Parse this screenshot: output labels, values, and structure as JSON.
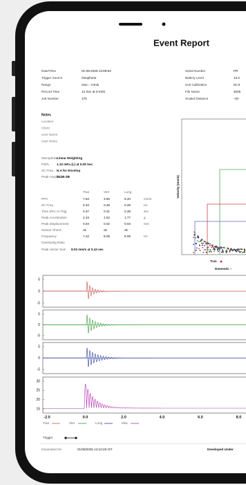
{
  "header": {
    "title": "Event Report"
  },
  "info_left": [
    {
      "label": "Date/Time",
      "value": "01-08-2025 13:09:53"
    },
    {
      "label": "Trigger Source",
      "value": "Geophone"
    },
    {
      "label": "Range",
      "value": "Geo :- mm/s"
    },
    {
      "label": "Record Time",
      "value": "12 Sec at 3 Ks/S"
    },
    {
      "label": "Job Number",
      "value": "175"
    }
  ],
  "info_right": [
    {
      "label": "Serial Number",
      "value": "PR"
    },
    {
      "label": "Battery Level",
      "value": "13.2"
    },
    {
      "label": "Unit Calibration",
      "value": "01-0"
    },
    {
      "label": "File Name",
      "value": "2025"
    },
    {
      "label": "Scaled Distance",
      "value": "~(0-"
    }
  ],
  "notes": {
    "title": "Notes",
    "fields": [
      "Location",
      "Client",
      "User Name",
      "User Notes"
    ]
  },
  "mic": [
    {
      "label": "Microphone",
      "value": "Linear Weighting"
    },
    {
      "label": "PSPL",
      "value": "1.10 mPa (L) at 0.09 Sec"
    },
    {
      "label": "ZC Freq",
      "value": "N.A for Envelop"
    },
    {
      "label": "Peak Amplitude",
      "value": "30.25 dB"
    }
  ],
  "table": {
    "header": [
      "Tran",
      "Vert",
      "Long"
    ],
    "rows": [
      [
        "PPV",
        "7.83",
        "3.56",
        "6.20",
        "mm/s"
      ],
      [
        "ZC Freq",
        "0.33",
        "0.36",
        "0.28",
        "Hz"
      ],
      [
        "Time (Rel. to Trig)",
        "0.37",
        "0.21",
        "0.28",
        "sec"
      ],
      [
        "Peak Acceleration",
        "2.43",
        "1.52",
        "1.77",
        "g"
      ],
      [
        "Peak Displacement",
        "0.04",
        "0.02",
        "0.03",
        "mm"
      ],
      [
        "Sensor Check",
        "ok",
        "ok",
        "ok"
      ],
      [
        "Frequency",
        "7.42",
        "8.09",
        "8.09",
        "Hz"
      ],
      [
        "Overswing Ratio"
      ]
    ]
  },
  "pvs": {
    "label": "Peak Vector Sum",
    "value": "8.03 mm/s at 0.43 sec"
  },
  "velocity_chart": {
    "y_label": "Velocity (mm/s)",
    "legend": [
      "Tran",
      "Domestic –"
    ]
  },
  "waveforms": {
    "panels": [
      {
        "yticks": [
          "5",
          "0",
          "-5"
        ]
      },
      {
        "yticks": [
          "5",
          "0",
          "-5"
        ]
      },
      {
        "yticks": [
          "5",
          "0",
          "-5"
        ]
      },
      {
        "yticks": [
          "30",
          "25",
          "20",
          "15"
        ]
      }
    ],
    "xticks": [
      "-2.0",
      "0.0",
      "2.0",
      "4.0",
      "6.0",
      "8.0"
    ],
    "legend": [
      "Tran",
      "Vert",
      "Long",
      "MicL"
    ]
  },
  "trigger": "Trigger",
  "footer": {
    "generated_label": "Generated On",
    "generated_value": "01/08/2025 13:10:26 IST",
    "developed": "Developed Under"
  }
}
